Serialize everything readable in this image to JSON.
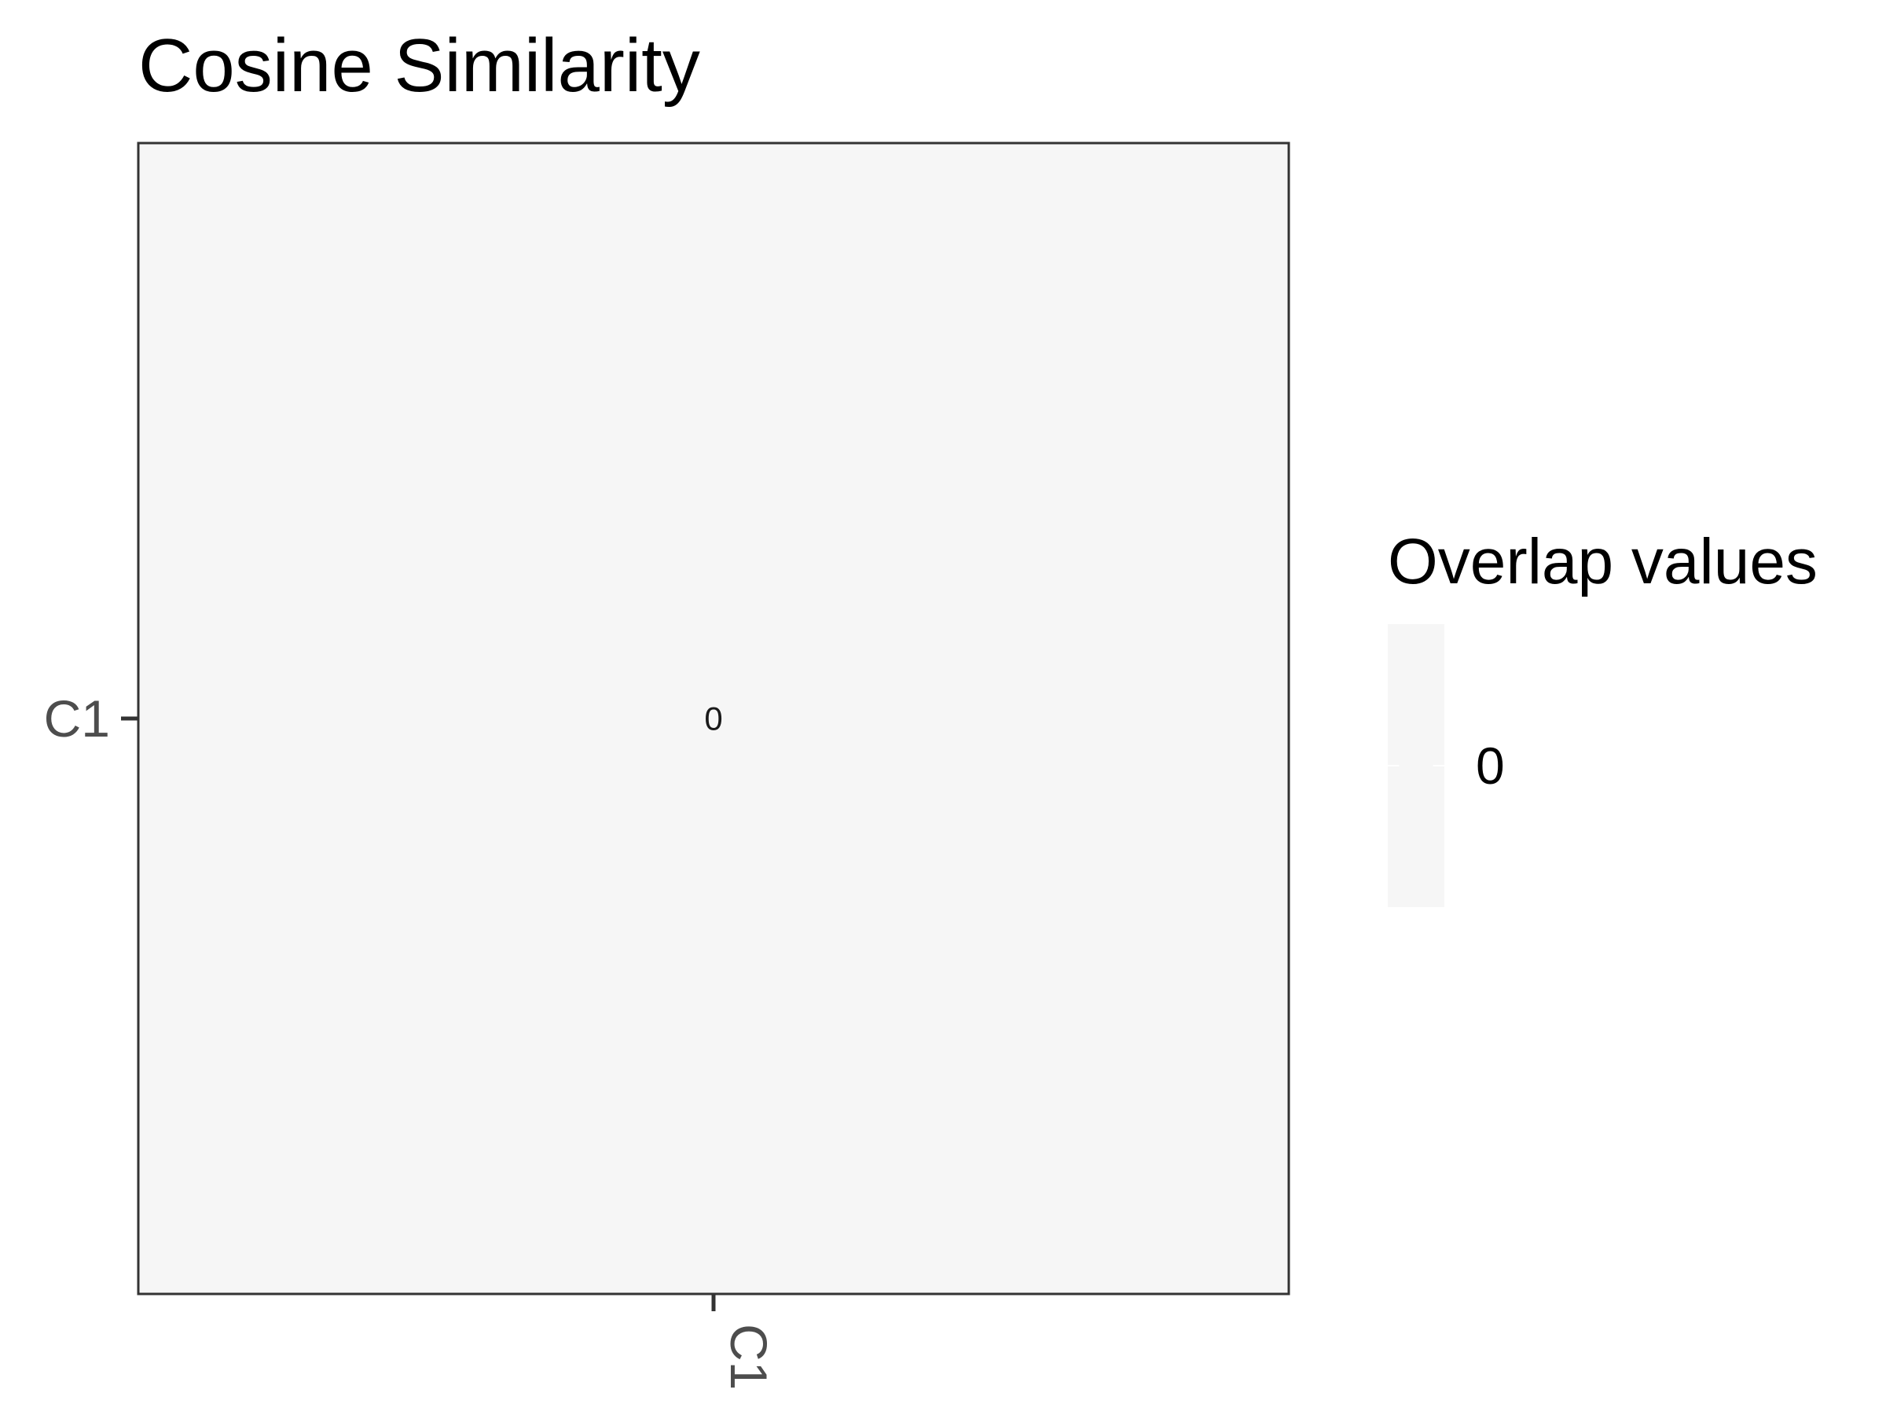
{
  "chart_data": {
    "type": "heatmap",
    "title": "Cosine Similarity",
    "xlabel": "",
    "ylabel": "",
    "x_categories": [
      "C1"
    ],
    "y_categories": [
      "C1"
    ],
    "cells": [
      {
        "x": "C1",
        "y": "C1",
        "value": 0,
        "label": "0"
      }
    ],
    "legend": {
      "title": "Overlap values",
      "position": "right",
      "breaks": [
        0
      ],
      "break_labels": [
        "0"
      ]
    },
    "grid": false,
    "colors": {
      "cell_fill": "#f6f6f6",
      "legend_fill": "#f6f6f6",
      "panel_border": "#333333",
      "tick_mark": "#333333",
      "tick_label": "#4d4d4d",
      "title": "#000000"
    }
  }
}
